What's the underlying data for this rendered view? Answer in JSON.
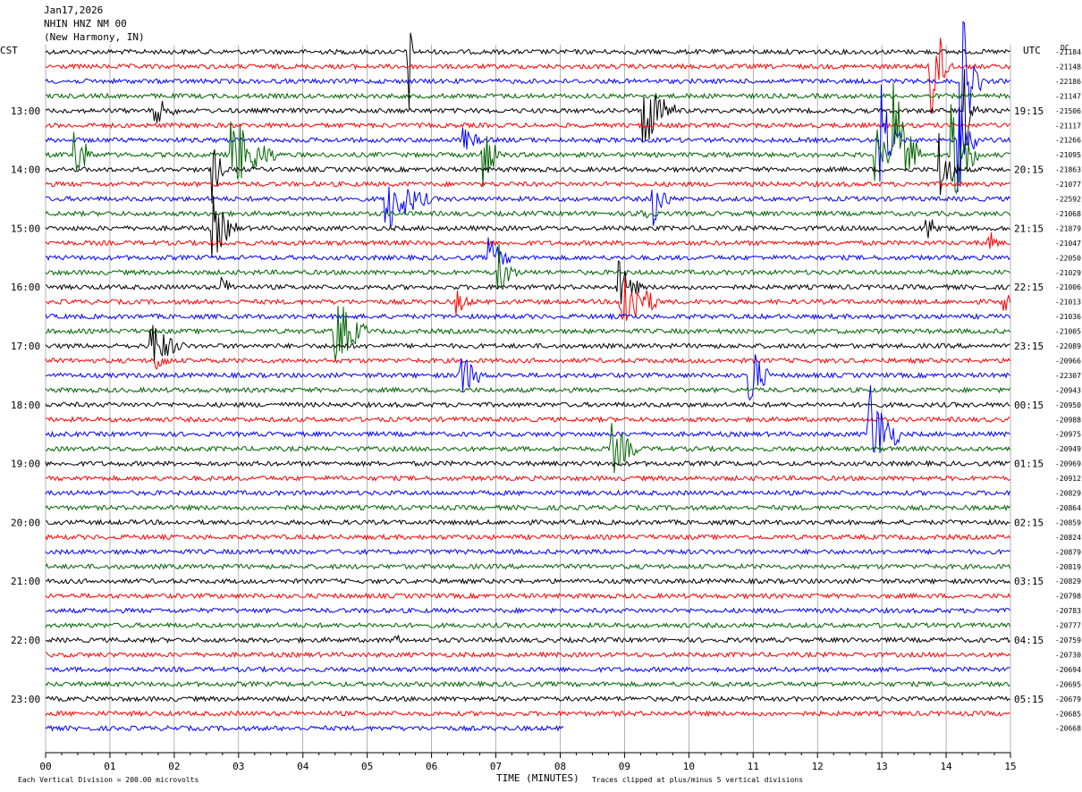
{
  "header": {
    "date": "Jan17,2026",
    "station": "NHIN HNZ NM 00",
    "location": "(New Harmony, IN)",
    "left_zone": "CST",
    "right_zone": "UTC",
    "dc_label": "DC"
  },
  "footer": {
    "scale_note": "Each Vertical Division =  200.00 microvolts",
    "xlabel": "TIME (MINUTES)",
    "clip_note": "Traces clipped at plus/minus 5 vertical divisions"
  },
  "chart_data": {
    "type": "line",
    "title": "",
    "xlabel": "TIME (MINUTES)",
    "xlim": [
      0,
      15
    ],
    "x_ticks": [
      "00",
      "01",
      "02",
      "03",
      "04",
      "05",
      "06",
      "07",
      "08",
      "09",
      "10",
      "11",
      "12",
      "13",
      "14",
      "15"
    ],
    "trace_colors": [
      "#000000",
      "#ff0000",
      "#0000ff",
      "#006400"
    ],
    "trace_count": 47,
    "last_trace_end_minute": 8.05,
    "left_time_labels": [
      {
        "trace": 4,
        "label": "13:00"
      },
      {
        "trace": 8,
        "label": "14:00"
      },
      {
        "trace": 12,
        "label": "15:00"
      },
      {
        "trace": 16,
        "label": "16:00"
      },
      {
        "trace": 20,
        "label": "17:00"
      },
      {
        "trace": 24,
        "label": "18:00"
      },
      {
        "trace": 28,
        "label": "19:00"
      },
      {
        "trace": 32,
        "label": "20:00"
      },
      {
        "trace": 36,
        "label": "21:00"
      },
      {
        "trace": 40,
        "label": "22:00"
      },
      {
        "trace": 44,
        "label": "23:00"
      }
    ],
    "right_time_labels": [
      {
        "trace": 4,
        "label": "19:15"
      },
      {
        "trace": 8,
        "label": "20:15"
      },
      {
        "trace": 12,
        "label": "21:15"
      },
      {
        "trace": 16,
        "label": "22:15"
      },
      {
        "trace": 20,
        "label": "23:15"
      },
      {
        "trace": 24,
        "label": "00:15"
      },
      {
        "trace": 28,
        "label": "01:15"
      },
      {
        "trace": 32,
        "label": "02:15"
      },
      {
        "trace": 36,
        "label": "03:15"
      },
      {
        "trace": 40,
        "label": "04:15"
      },
      {
        "trace": 44,
        "label": "05:15"
      }
    ],
    "dc_values": [
      "-21184",
      "-21148",
      "-22186",
      "-21147",
      "-21506",
      "-21117",
      "-21266",
      "-21095",
      "-21863",
      "-21077",
      "-22592",
      "-21068",
      "-21879",
      "-21047",
      "-22050",
      "-21029",
      "-21006",
      "-21013",
      "-21036",
      "-21005",
      "-22089",
      "-20966",
      "-22307",
      "-20943",
      "-20950",
      "-20988",
      "-20975",
      "-20949",
      "-20969",
      "-20912",
      "-20829",
      "-20864",
      "-20859",
      "-20824",
      "-20879",
      "-20819",
      "-20829",
      "-20798",
      "-20783",
      "-20777",
      "-20759",
      "-20730",
      "-20694",
      "-20695",
      "-20679",
      "-20685",
      "-20668"
    ],
    "events": [
      {
        "trace": 0,
        "minute": 5.65,
        "amp": 5,
        "dur": 0.05
      },
      {
        "trace": 1,
        "minute": 13.75,
        "amp": 5,
        "dur": 0.35
      },
      {
        "trace": 2,
        "minute": 14.25,
        "amp": 5,
        "dur": 0.3
      },
      {
        "trace": 4,
        "minute": 1.7,
        "amp": 1.2,
        "dur": 0.4
      },
      {
        "trace": 4,
        "minute": 9.3,
        "amp": 3,
        "dur": 0.5
      },
      {
        "trace": 4,
        "minute": 14.3,
        "amp": 3,
        "dur": 0.2
      },
      {
        "trace": 6,
        "minute": 6.5,
        "amp": 1,
        "dur": 0.4
      },
      {
        "trace": 6,
        "minute": 13.0,
        "amp": 4,
        "dur": 0.3
      },
      {
        "trace": 6,
        "minute": 14.2,
        "amp": 4,
        "dur": 0.3
      },
      {
        "trace": 7,
        "minute": 0.45,
        "amp": 2.5,
        "dur": 0.3
      },
      {
        "trace": 7,
        "minute": 2.9,
        "amp": 3,
        "dur": 0.7
      },
      {
        "trace": 7,
        "minute": 6.8,
        "amp": 2.5,
        "dur": 0.3
      },
      {
        "trace": 7,
        "minute": 12.9,
        "amp": 2,
        "dur": 0.4
      },
      {
        "trace": 7,
        "minute": 13.2,
        "amp": 5,
        "dur": 0.4
      },
      {
        "trace": 7,
        "minute": 14.1,
        "amp": 4,
        "dur": 0.4
      },
      {
        "trace": 8,
        "minute": 2.6,
        "amp": 2.5,
        "dur": 0.2
      },
      {
        "trace": 8,
        "minute": 13.9,
        "amp": 3,
        "dur": 0.3
      },
      {
        "trace": 10,
        "minute": 5.3,
        "amp": 2.5,
        "dur": 0.7
      },
      {
        "trace": 10,
        "minute": 9.45,
        "amp": 2,
        "dur": 0.3
      },
      {
        "trace": 11,
        "minute": 9.2,
        "amp": 0.8,
        "dur": 0.4
      },
      {
        "trace": 12,
        "minute": 2.6,
        "amp": 2.5,
        "dur": 0.4
      },
      {
        "trace": 12,
        "minute": 13.7,
        "amp": 1,
        "dur": 0.4
      },
      {
        "trace": 13,
        "minute": 14.65,
        "amp": 1.2,
        "dur": 0.2
      },
      {
        "trace": 14,
        "minute": 6.9,
        "amp": 1.5,
        "dur": 0.4
      },
      {
        "trace": 15,
        "minute": 7.05,
        "amp": 2,
        "dur": 0.3
      },
      {
        "trace": 16,
        "minute": 2.75,
        "amp": 0.8,
        "dur": 0.3
      },
      {
        "trace": 16,
        "minute": 8.9,
        "amp": 2,
        "dur": 0.4
      },
      {
        "trace": 17,
        "minute": 6.4,
        "amp": 1,
        "dur": 0.3
      },
      {
        "trace": 17,
        "minute": 8.95,
        "amp": 3,
        "dur": 0.6
      },
      {
        "trace": 17,
        "minute": 14.9,
        "amp": 1.3,
        "dur": 0.2
      },
      {
        "trace": 19,
        "minute": 4.5,
        "amp": 3,
        "dur": 0.5
      },
      {
        "trace": 20,
        "minute": 1.65,
        "amp": 2,
        "dur": 0.5
      },
      {
        "trace": 21,
        "minute": 1.7,
        "amp": 1,
        "dur": 0.3
      },
      {
        "trace": 22,
        "minute": 6.45,
        "amp": 2,
        "dur": 0.4
      },
      {
        "trace": 22,
        "minute": 10.95,
        "amp": 3,
        "dur": 0.3
      },
      {
        "trace": 26,
        "minute": 12.8,
        "amp": 4,
        "dur": 0.5
      },
      {
        "trace": 27,
        "minute": 8.8,
        "amp": 2,
        "dur": 0.5
      },
      {
        "trace": 40,
        "minute": 5.45,
        "amp": 0.8,
        "dur": 0.1
      }
    ]
  }
}
